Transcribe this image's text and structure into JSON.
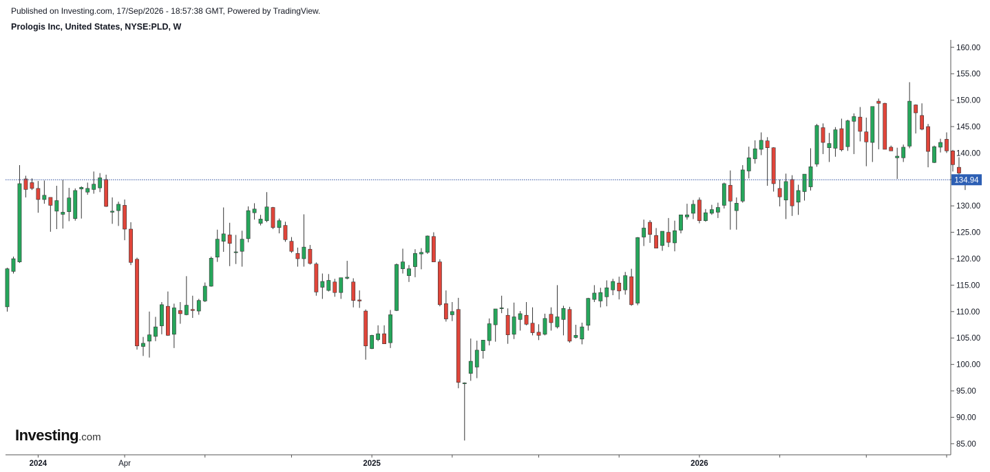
{
  "header": {
    "published": "Published on Investing.com, 17/Sep/2026 - 18:57:38 GMT, Powered by TradingView.",
    "symbol": "Prologis Inc, United States, NYSE:PLD, W"
  },
  "logo": {
    "brand": "Investing",
    "suffix": ".com"
  },
  "chart_data": {
    "type": "candlestick",
    "ylim": [
      82.9,
      161.4
    ],
    "yticks": [
      "160.00",
      "155.00",
      "150.00",
      "145.00",
      "140.00",
      "135.00",
      "130.00",
      "125.00",
      "120.00",
      "115.00",
      "110.00",
      "105.00",
      "100.00",
      "95.00",
      "90.00",
      "85.00"
    ],
    "x_labels": [
      {
        "label": "2024",
        "index": 5
      },
      {
        "label": "Apr",
        "index": 19
      },
      {
        "label": "",
        "index": 32
      },
      {
        "label": "",
        "index": 46
      },
      {
        "label": "2025",
        "index": 59
      },
      {
        "label": "",
        "index": 72
      },
      {
        "label": "",
        "index": 86
      },
      {
        "label": "",
        "index": 99
      },
      {
        "label": "2026",
        "index": 112
      },
      {
        "label": "",
        "index": 125
      },
      {
        "label": "",
        "index": 139
      },
      {
        "label": "",
        "index": 152
      }
    ],
    "last_price": "134.94",
    "up_color": "#26a65b",
    "down_color": "#e0453a",
    "ohlc": [
      [
        110.9,
        118.3,
        110.0,
        118.1
      ],
      [
        117.6,
        120.4,
        117.2,
        120.0
      ],
      [
        119.4,
        137.7,
        119.2,
        134.2
      ],
      [
        135.1,
        135.7,
        131.6,
        133.1
      ],
      [
        134.4,
        135.2,
        133.0,
        133.3
      ],
      [
        133.3,
        134.7,
        128.7,
        131.2
      ],
      [
        131.2,
        134.8,
        130.4,
        132.0
      ],
      [
        131.6,
        131.6,
        125.1,
        130.1
      ],
      [
        129.0,
        133.8,
        125.6,
        131.0
      ],
      [
        128.4,
        134.9,
        125.7,
        128.8
      ],
      [
        128.9,
        133.4,
        127.1,
        131.5
      ],
      [
        127.6,
        133.3,
        127.2,
        132.9
      ],
      [
        133.2,
        133.7,
        127.6,
        133.5
      ],
      [
        132.6,
        134.4,
        132.1,
        133.3
      ],
      [
        133.1,
        136.5,
        132.3,
        134.1
      ],
      [
        133.4,
        136.2,
        132.6,
        135.3
      ],
      [
        135.0,
        135.9,
        129.8,
        129.9
      ],
      [
        128.8,
        131.6,
        126.6,
        129.0
      ],
      [
        129.1,
        130.8,
        126.2,
        130.3
      ],
      [
        130.1,
        131.2,
        123.5,
        125.6
      ],
      [
        125.6,
        126.9,
        118.8,
        119.3
      ],
      [
        119.9,
        120.2,
        102.8,
        103.5
      ],
      [
        103.4,
        105.2,
        101.6,
        104.0
      ],
      [
        104.4,
        110.0,
        101.3,
        105.6
      ],
      [
        105.3,
        109.0,
        104.4,
        107.1
      ],
      [
        107.3,
        111.8,
        105.7,
        111.3
      ],
      [
        111.0,
        113.8,
        105.4,
        105.5
      ],
      [
        105.7,
        111.5,
        103.1,
        110.7
      ],
      [
        110.2,
        111.8,
        107.7,
        109.6
      ],
      [
        109.4,
        116.7,
        109.3,
        111.2
      ],
      [
        110.4,
        113.0,
        108.8,
        110.2
      ],
      [
        110.1,
        112.4,
        109.4,
        112.1
      ],
      [
        112.0,
        115.5,
        111.8,
        114.8
      ],
      [
        114.8,
        120.4,
        114.7,
        120.1
      ],
      [
        120.3,
        125.5,
        119.4,
        123.7
      ],
      [
        123.3,
        129.7,
        121.3,
        124.7
      ],
      [
        124.5,
        126.8,
        118.6,
        122.9
      ],
      [
        121.2,
        124.5,
        119.0,
        121.3
      ],
      [
        121.4,
        125.3,
        118.5,
        123.7
      ],
      [
        123.8,
        129.9,
        123.1,
        129.1
      ],
      [
        128.7,
        130.5,
        127.4,
        129.4
      ],
      [
        126.7,
        128.3,
        126.3,
        127.5
      ],
      [
        127.2,
        132.6,
        126.9,
        129.8
      ],
      [
        129.7,
        129.8,
        125.6,
        125.9
      ],
      [
        125.9,
        127.6,
        124.8,
        127.2
      ],
      [
        126.3,
        127.0,
        123.2,
        123.6
      ],
      [
        123.3,
        124.1,
        121.1,
        121.4
      ],
      [
        121.0,
        122.1,
        118.5,
        120.0
      ],
      [
        120.0,
        128.4,
        118.5,
        122.2
      ],
      [
        121.8,
        122.6,
        118.9,
        119.1
      ],
      [
        119.0,
        119.3,
        113.0,
        113.7
      ],
      [
        114.6,
        117.2,
        112.4,
        115.7
      ],
      [
        114.0,
        117.1,
        113.8,
        115.9
      ],
      [
        115.6,
        116.2,
        112.8,
        113.6
      ],
      [
        113.6,
        116.1,
        112.4,
        116.4
      ],
      [
        116.3,
        119.6,
        116.1,
        116.5
      ],
      [
        115.6,
        116.3,
        110.8,
        112.1
      ],
      [
        112.2,
        114.0,
        110.7,
        112.0
      ],
      [
        110.1,
        110.4,
        100.9,
        103.5
      ],
      [
        103.0,
        105.6,
        102.9,
        105.5
      ],
      [
        104.7,
        107.4,
        104.4,
        105.8
      ],
      [
        105.8,
        107.4,
        104.1,
        103.9
      ],
      [
        104.1,
        110.3,
        103.1,
        109.4
      ],
      [
        110.2,
        119.1,
        110.1,
        118.9
      ],
      [
        118.1,
        121.9,
        117.2,
        119.4
      ],
      [
        116.8,
        118.8,
        115.6,
        118.1
      ],
      [
        118.5,
        121.8,
        116.5,
        121.0
      ],
      [
        120.9,
        122.0,
        118.0,
        121.2
      ],
      [
        121.2,
        124.4,
        120.9,
        124.3
      ],
      [
        124.2,
        125.0,
        119.4,
        119.4
      ],
      [
        119.4,
        119.9,
        111.0,
        111.3
      ],
      [
        111.5,
        114.0,
        108.1,
        108.6
      ],
      [
        109.4,
        111.8,
        108.2,
        110.0
      ],
      [
        110.4,
        112.6,
        95.5,
        96.6
      ],
      [
        96.4,
        96.6,
        85.6,
        96.5
      ],
      [
        98.3,
        104.9,
        96.9,
        100.6
      ],
      [
        99.5,
        104.5,
        97.4,
        102.7
      ],
      [
        102.6,
        104.4,
        101.1,
        104.6
      ],
      [
        104.5,
        108.7,
        103.6,
        107.7
      ],
      [
        107.5,
        110.4,
        104.3,
        110.5
      ],
      [
        110.6,
        113.0,
        109.7,
        110.7
      ],
      [
        109.3,
        110.6,
        103.9,
        105.6
      ],
      [
        105.7,
        111.7,
        104.8,
        109.0
      ],
      [
        108.5,
        110.1,
        106.4,
        109.6
      ],
      [
        109.3,
        111.8,
        107.4,
        107.6
      ],
      [
        107.8,
        110.8,
        105.5,
        106.0
      ],
      [
        106.1,
        107.6,
        104.6,
        105.5
      ],
      [
        105.7,
        109.6,
        105.5,
        108.7
      ],
      [
        109.5,
        110.8,
        106.4,
        107.9
      ],
      [
        107.1,
        115.0,
        106.8,
        109.0
      ],
      [
        108.5,
        111.1,
        105.5,
        110.6
      ],
      [
        110.4,
        110.9,
        104.1,
        104.4
      ],
      [
        105.1,
        107.5,
        104.9,
        105.5
      ],
      [
        104.8,
        107.9,
        103.8,
        107.1
      ],
      [
        107.4,
        112.6,
        106.4,
        112.5
      ],
      [
        112.3,
        115.0,
        111.8,
        113.5
      ],
      [
        112.0,
        114.5,
        110.8,
        113.6
      ],
      [
        112.8,
        115.9,
        111.0,
        114.5
      ],
      [
        114.1,
        116.2,
        113.1,
        115.7
      ],
      [
        115.4,
        116.6,
        112.3,
        113.9
      ],
      [
        114.1,
        117.5,
        113.2,
        116.8
      ],
      [
        116.6,
        118.1,
        111.1,
        111.3
      ],
      [
        111.6,
        124.1,
        111.2,
        124.0
      ],
      [
        124.1,
        127.4,
        122.4,
        125.8
      ],
      [
        126.9,
        127.3,
        123.0,
        124.6
      ],
      [
        124.4,
        125.8,
        122.2,
        122.0
      ],
      [
        122.5,
        125.2,
        121.5,
        125.2
      ],
      [
        125.0,
        127.7,
        122.2,
        123.1
      ],
      [
        123.0,
        127.2,
        121.4,
        125.3
      ],
      [
        125.4,
        128.1,
        124.8,
        128.3
      ],
      [
        127.9,
        130.4,
        127.4,
        128.3
      ],
      [
        128.6,
        131.1,
        127.5,
        130.3
      ],
      [
        131.1,
        131.6,
        126.7,
        127.2
      ],
      [
        127.2,
        129.4,
        127.0,
        128.7
      ],
      [
        128.6,
        130.2,
        128.3,
        129.3
      ],
      [
        128.8,
        130.6,
        127.7,
        129.7
      ],
      [
        130.1,
        134.4,
        129.5,
        134.2
      ],
      [
        133.9,
        136.7,
        125.5,
        130.9
      ],
      [
        129.1,
        131.6,
        125.5,
        130.5
      ],
      [
        130.9,
        137.7,
        130.6,
        136.8
      ],
      [
        136.6,
        141.2,
        135.2,
        139.1
      ],
      [
        138.9,
        142.4,
        138.0,
        140.8
      ],
      [
        140.7,
        143.9,
        139.6,
        142.4
      ],
      [
        142.3,
        143.0,
        133.8,
        141.0
      ],
      [
        141.0,
        141.1,
        132.7,
        134.2
      ],
      [
        133.3,
        135.0,
        129.9,
        131.7
      ],
      [
        131.1,
        136.1,
        127.5,
        134.6
      ],
      [
        135.0,
        135.8,
        128.1,
        130.0
      ],
      [
        130.7,
        134.0,
        128.3,
        132.9
      ],
      [
        132.7,
        136.0,
        131.0,
        136.0
      ],
      [
        133.6,
        140.9,
        132.9,
        137.4
      ],
      [
        137.9,
        145.5,
        137.4,
        145.2
      ],
      [
        144.8,
        145.6,
        139.8,
        142.0
      ],
      [
        141.0,
        143.8,
        138.3,
        141.8
      ],
      [
        140.9,
        144.9,
        139.3,
        144.4
      ],
      [
        144.6,
        146.5,
        140.3,
        140.6
      ],
      [
        141.2,
        146.3,
        140.4,
        146.1
      ],
      [
        146.0,
        147.5,
        139.8,
        146.9
      ],
      [
        146.8,
        148.7,
        142.2,
        144.1
      ],
      [
        144.0,
        146.7,
        137.5,
        142.1
      ],
      [
        142.0,
        148.4,
        138.3,
        148.8
      ],
      [
        149.8,
        150.3,
        140.7,
        149.4
      ],
      [
        149.4,
        149.5,
        141.1,
        140.7
      ],
      [
        141.1,
        141.4,
        140.6,
        140.4
      ],
      [
        139.1,
        141.0,
        135.1,
        139.4
      ],
      [
        139.1,
        141.6,
        138.3,
        141.1
      ],
      [
        141.3,
        153.4,
        140.9,
        149.8
      ],
      [
        149.1,
        149.2,
        143.7,
        147.6
      ],
      [
        147.1,
        149.4,
        144.3,
        144.5
      ],
      [
        145.0,
        145.5,
        137.3,
        140.3
      ],
      [
        138.2,
        141.4,
        138.1,
        141.2
      ],
      [
        141.1,
        142.7,
        140.1,
        142.0
      ],
      [
        142.6,
        143.9,
        140.0,
        140.4
      ],
      [
        140.4,
        140.6,
        136.5,
        137.8
      ],
      [
        137.3,
        139.2,
        135.2,
        136.2
      ],
      [
        135.6,
        135.8,
        133.0,
        134.9
      ]
    ]
  }
}
